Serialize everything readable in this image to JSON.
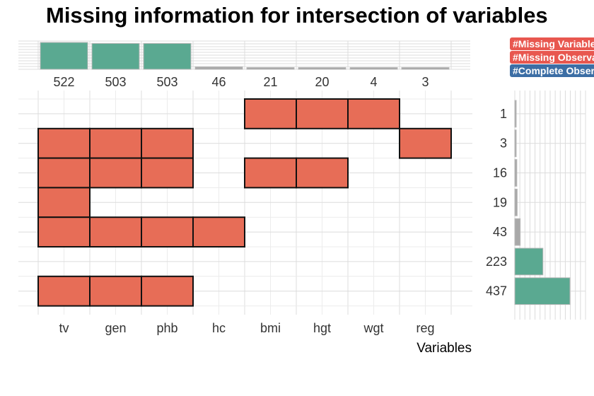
{
  "chart_data": {
    "type": "upset",
    "title": "Missing information for intersection of variables",
    "xlabel": "Variables",
    "variables": [
      "tv",
      "gen",
      "phb",
      "hc",
      "bmi",
      "hgt",
      "wgt",
      "reg"
    ],
    "top_bars": {
      "values": [
        522,
        503,
        503,
        46,
        21,
        20,
        4,
        3
      ],
      "highlighted": [
        true,
        true,
        true,
        false,
        false,
        false,
        false,
        false
      ]
    },
    "patterns": {
      "labels": [
        "1",
        "3",
        "16",
        "19",
        "43",
        "223",
        "437"
      ],
      "values": [
        1,
        3,
        16,
        19,
        43,
        223,
        437
      ],
      "highlighted": [
        false,
        false,
        false,
        false,
        false,
        true,
        true
      ],
      "missing": [
        [
          "bmi",
          "hgt",
          "wgt"
        ],
        [
          "tv",
          "gen",
          "phb",
          "reg"
        ],
        [
          "tv",
          "gen",
          "phb",
          "bmi",
          "hgt"
        ],
        [
          "tv"
        ],
        [
          "tv",
          "gen",
          "phb",
          "hc"
        ],
        [],
        [
          "tv",
          "gen",
          "phb"
        ]
      ]
    },
    "legend": {
      "placement": "top-right",
      "entries": [
        {
          "label": "#Missing Variables",
          "color": "#e8574f"
        },
        {
          "label": "#Missing Observations",
          "color": "#e8574f"
        },
        {
          "label": "#Complete Observations",
          "color": "#3c6ea5"
        }
      ]
    },
    "colors": {
      "missing_cell": "#e76d57",
      "highlight_bar": "#5aa991",
      "grey_bar": "#a8a8a8",
      "grid": "#dcdcdc"
    },
    "grid": true
  }
}
